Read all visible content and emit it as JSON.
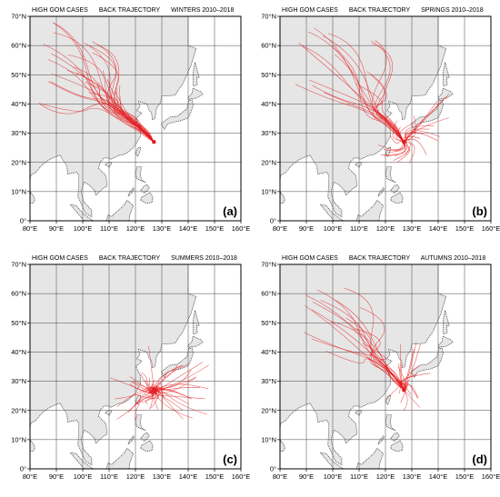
{
  "figure": {
    "panels": [
      {
        "title_parts": [
          "HIGH GOM CASES",
          "BACK TRAJECTORY",
          "WINTERS 2010–2018"
        ],
        "label": "(a)",
        "season": "winter"
      },
      {
        "title_parts": [
          "HIGH GOM CASES",
          "BACK TRAJECTORY",
          "SPRINGS 2010–2018"
        ],
        "label": "(b)",
        "season": "spring"
      },
      {
        "title_parts": [
          "HIGH GOM CASES",
          "BACK TRAJECTORY",
          "SUMMERS 2010–2018"
        ],
        "label": "(c)",
        "season": "summer"
      },
      {
        "title_parts": [
          "HIGH GOM CASES",
          "BACK TRAJECTORY",
          "AUTUMNS 2010–2018"
        ],
        "label": "(d)",
        "season": "autumn"
      }
    ],
    "x_ticks": [
      "80°E",
      "90°E",
      "100°E",
      "110°E",
      "120°E",
      "130°E",
      "140°E",
      "150°E",
      "160°E"
    ],
    "y_ticks": [
      "0°",
      "10°N",
      "20°N",
      "30°N",
      "40°N",
      "50°N",
      "60°N",
      "70°N"
    ],
    "lon_range": [
      80,
      160
    ],
    "lat_range": [
      0,
      70
    ],
    "receptor": {
      "lon": 127,
      "lat": 27
    },
    "colors": {
      "land": "#e6e6e6",
      "ocean": "#ffffff",
      "trajectory": "#e41a1c",
      "grid": "#444444"
    }
  }
}
